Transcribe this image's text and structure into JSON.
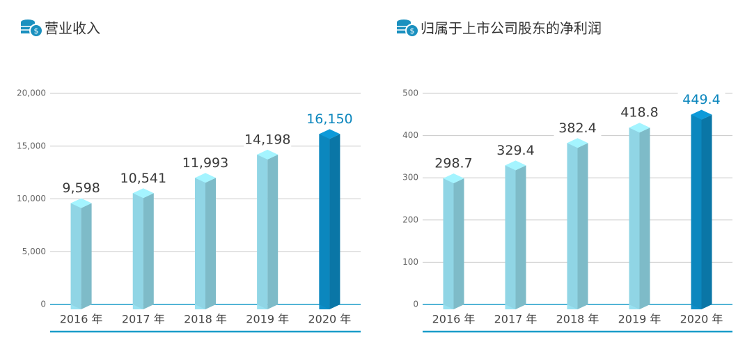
{
  "chart_data": [
    {
      "type": "bar",
      "title": "营业收入",
      "categories": [
        "2016 年",
        "2017 年",
        "2018 年",
        "2019 年",
        "2020 年"
      ],
      "values": [
        9598,
        10541,
        11993,
        14198,
        16150
      ],
      "value_labels": [
        "9,598",
        "10,541",
        "11,993",
        "14,198",
        "16,150"
      ],
      "colors": [
        "#8fd4e3",
        "#8fd4e3",
        "#8fd4e3",
        "#8fd4e3",
        "#0b86bd"
      ],
      "ylim": [
        0,
        20000
      ],
      "yticks": [
        0,
        {
          "value": 5000,
          "label": "5,000"
        },
        {
          "value": 10000,
          "label": "10,000"
        },
        {
          "value": 15000,
          "label": "15,000"
        },
        {
          "value": 20000,
          "label": "20,000"
        }
      ],
      "grid": true
    },
    {
      "type": "bar",
      "title": "归属于上市公司股东的净利润",
      "categories": [
        "2016 年",
        "2017 年",
        "2018 年",
        "2019 年",
        "2020 年"
      ],
      "values": [
        298.7,
        329.4,
        382.4,
        418.8,
        449.4
      ],
      "colors": [
        "#8fd4e3",
        "#8fd4e3",
        "#8fd4e3",
        "#8fd4e3",
        "#0b86bd"
      ],
      "ylim": [
        0,
        500
      ],
      "yticks": [
        0,
        100,
        200,
        300,
        400,
        500
      ],
      "grid": true
    }
  ]
}
